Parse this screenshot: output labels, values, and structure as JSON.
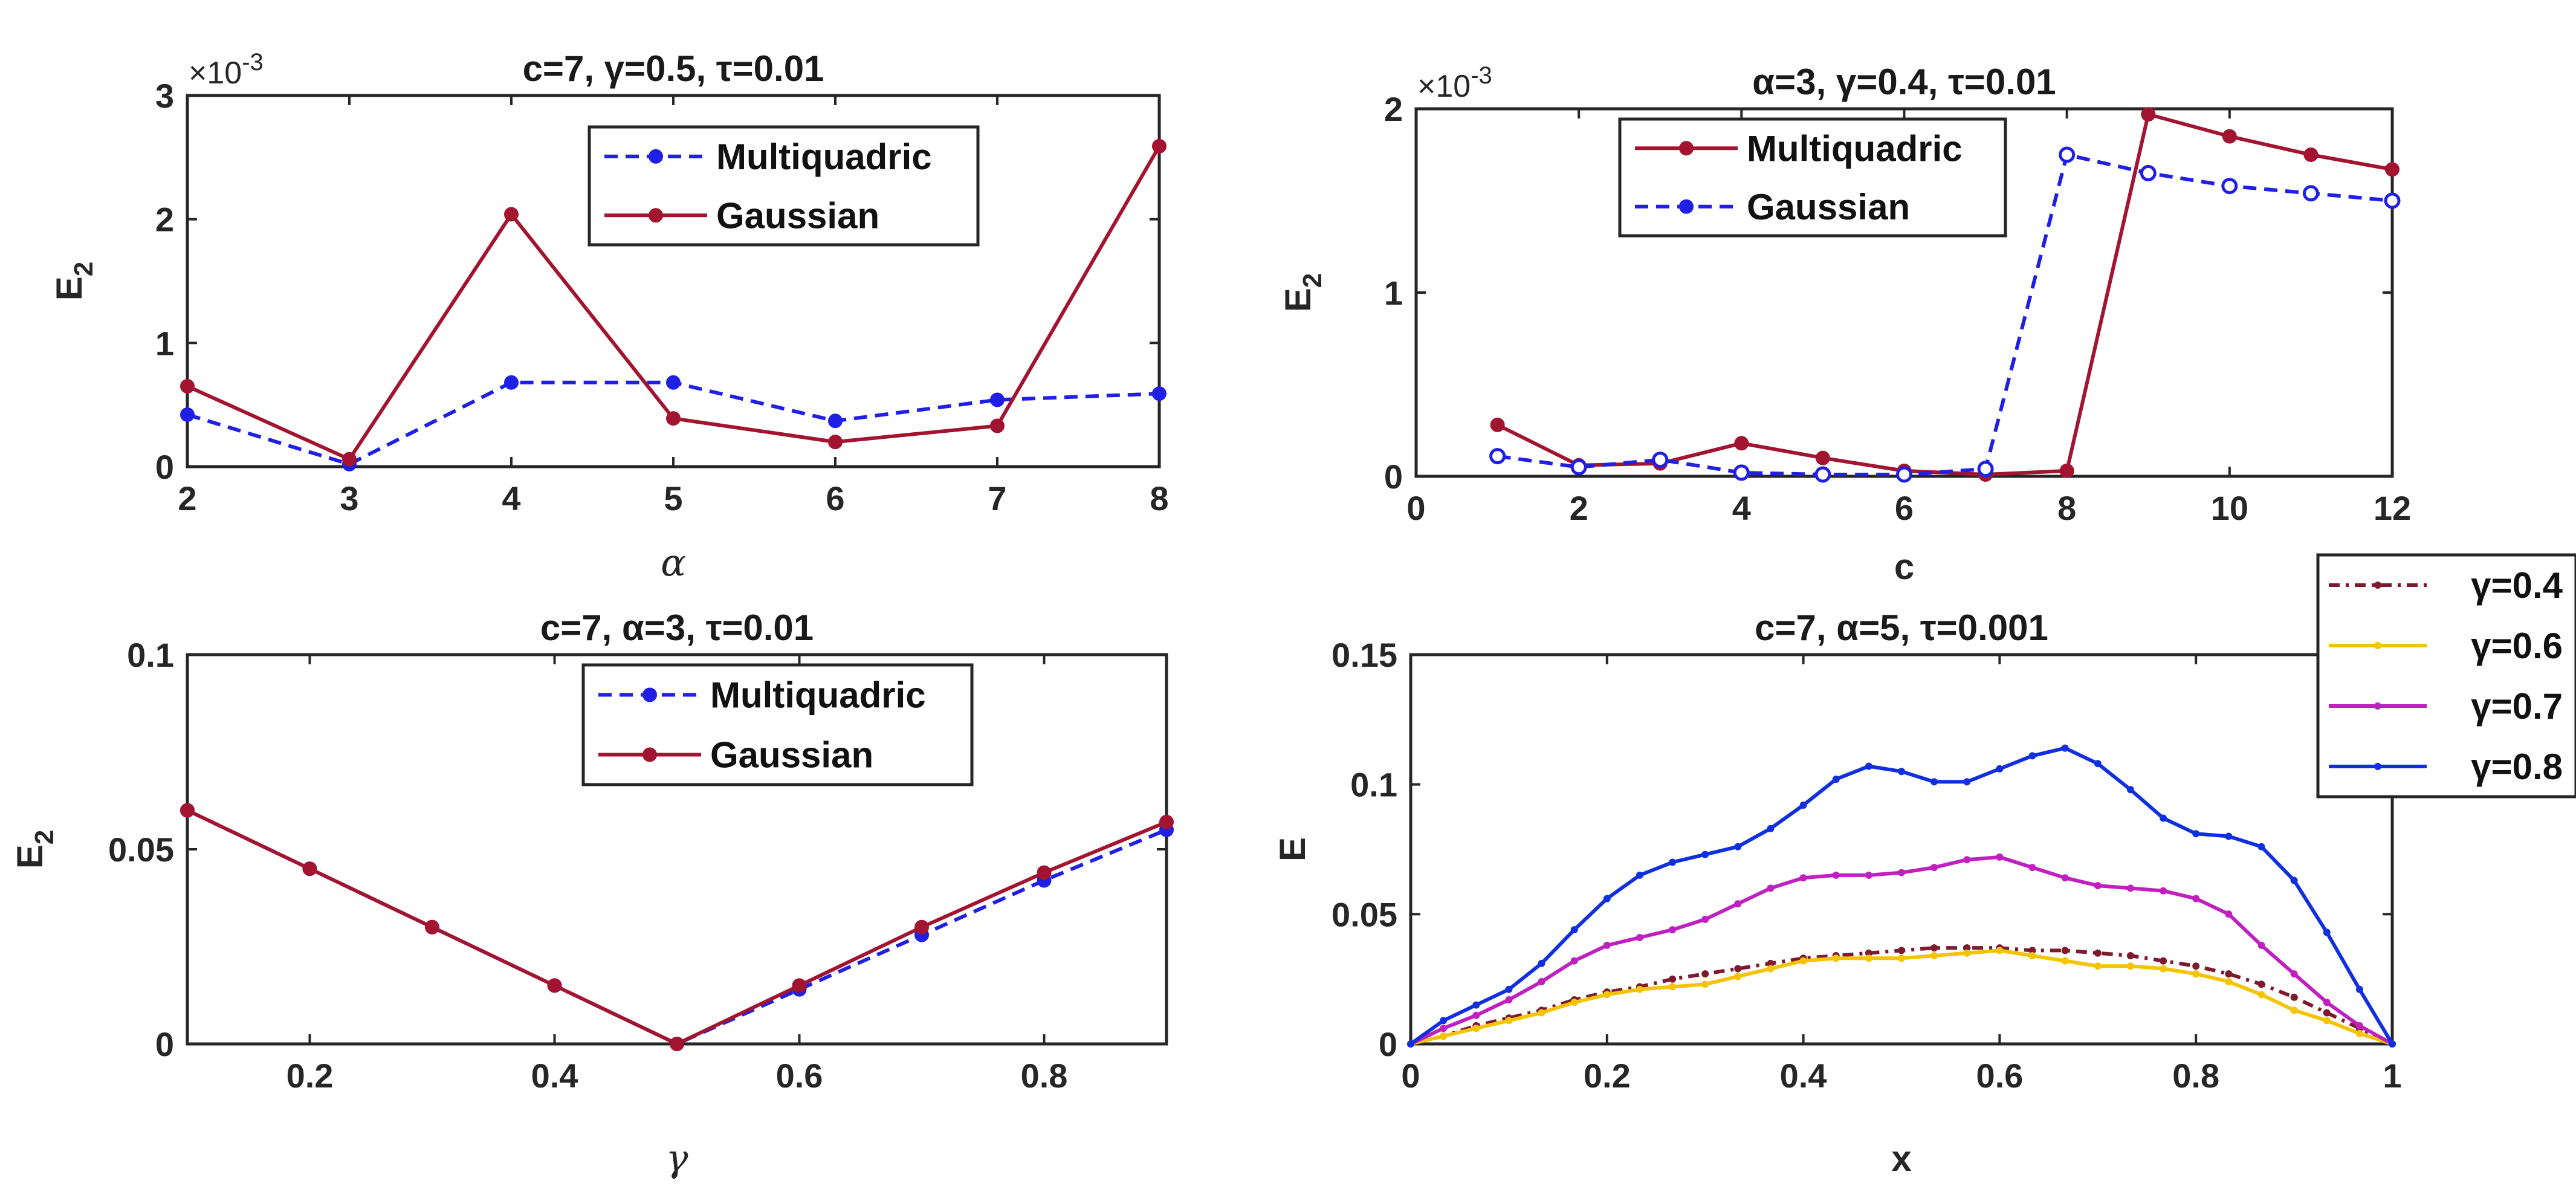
{
  "chart_data": [
    {
      "type": "line",
      "title": "c=7, γ=0.5, τ=0.01",
      "xlabel": "α",
      "ylabel": "E2",
      "y_exponent": "×10-3",
      "xlim": [
        2,
        8
      ],
      "ylim": [
        0,
        3
      ],
      "xticks": [
        "2",
        "3",
        "4",
        "5",
        "6",
        "7",
        "8"
      ],
      "yticks": [
        "0",
        "1",
        "2",
        "3"
      ],
      "legend_position": "top-right",
      "x": [
        2,
        3,
        4,
        5,
        6,
        7,
        8
      ],
      "series": [
        {
          "name": "Multiquadric",
          "values": [
            0.42,
            0.02,
            0.68,
            0.68,
            0.37,
            0.54,
            0.59
          ],
          "color": "#1f1fe6",
          "style": "dashed"
        },
        {
          "name": "Gaussian",
          "values": [
            0.65,
            0.06,
            2.04,
            0.39,
            0.2,
            0.33,
            2.59
          ],
          "color": "#a2142f",
          "style": "solid"
        }
      ]
    },
    {
      "type": "line",
      "title": "α=3, γ=0.4, τ=0.01",
      "xlabel": "c",
      "ylabel": "E2",
      "y_exponent": "×10-3",
      "xlim": [
        0,
        12
      ],
      "ylim": [
        0,
        2
      ],
      "xticks": [
        "0",
        "2",
        "4",
        "6",
        "8",
        "10",
        "12"
      ],
      "yticks": [
        "0",
        "1",
        "2"
      ],
      "legend_position": "top-left",
      "x": [
        1,
        2,
        3,
        4,
        5,
        6,
        7,
        8,
        9,
        10,
        11,
        12
      ],
      "series": [
        {
          "name": "Multiquadric",
          "values": [
            0.28,
            0.06,
            0.07,
            0.18,
            0.1,
            0.03,
            0.01,
            0.03,
            1.97,
            1.85,
            1.75,
            1.67
          ],
          "color": "#a2142f",
          "style": "solid"
        },
        {
          "name": "Gaussian",
          "values": [
            0.11,
            0.05,
            0.09,
            0.02,
            0.01,
            0.01,
            0.04,
            1.75,
            1.65,
            1.58,
            1.54,
            1.5
          ],
          "color": "#1f1fe6",
          "style": "dashed"
        }
      ]
    },
    {
      "type": "line",
      "title": "c=7, α=3, τ=0.01",
      "xlabel": "γ",
      "ylabel": "E2",
      "xlim": [
        0.1,
        0.9
      ],
      "ylim": [
        0,
        0.1
      ],
      "xticks": [
        "0.2",
        "0.4",
        "0.6",
        "0.8"
      ],
      "yticks": [
        "0",
        "0.05",
        "0.1"
      ],
      "legend_position": "top-right",
      "x": [
        0.1,
        0.2,
        0.3,
        0.4,
        0.5,
        0.6,
        0.7,
        0.8,
        0.9
      ],
      "series": [
        {
          "name": "Multiquadric",
          "values": [
            0.06,
            0.045,
            0.03,
            0.015,
            0.0,
            0.014,
            0.028,
            0.042,
            0.055
          ],
          "color": "#1f1fe6",
          "style": "dashed"
        },
        {
          "name": "Gaussian",
          "values": [
            0.06,
            0.045,
            0.03,
            0.015,
            0.0,
            0.015,
            0.03,
            0.044,
            0.057
          ],
          "color": "#a2142f",
          "style": "solid"
        }
      ]
    },
    {
      "type": "line",
      "title": "c=7, α=5, τ=0.001",
      "xlabel": "x",
      "ylabel": "E",
      "xlim": [
        0,
        1
      ],
      "ylim": [
        0,
        0.15
      ],
      "xticks": [
        "0",
        "0.2",
        "0.4",
        "0.6",
        "0.8",
        "1"
      ],
      "yticks": [
        "0",
        "0.05",
        "0.1",
        "0.15"
      ],
      "legend_position": "outside-top-right",
      "x": [
        0,
        0.0333,
        0.0667,
        0.1,
        0.1333,
        0.1667,
        0.2,
        0.2333,
        0.2667,
        0.3,
        0.3333,
        0.3667,
        0.4,
        0.4333,
        0.4667,
        0.5,
        0.5333,
        0.5667,
        0.6,
        0.6333,
        0.6667,
        0.7,
        0.7333,
        0.7667,
        0.8,
        0.8333,
        0.8667,
        0.9,
        0.9333,
        0.9667,
        1
      ],
      "series": [
        {
          "name": "γ=0.4",
          "color": "#7e1a2e",
          "style": "dashdot",
          "values": [
            0,
            0.003,
            0.007,
            0.01,
            0.013,
            0.017,
            0.02,
            0.022,
            0.025,
            0.027,
            0.029,
            0.031,
            0.033,
            0.034,
            0.035,
            0.036,
            0.037,
            0.037,
            0.037,
            0.036,
            0.036,
            0.035,
            0.034,
            0.032,
            0.03,
            0.027,
            0.023,
            0.018,
            0.012,
            0.006,
            0
          ]
        },
        {
          "name": "γ=0.6",
          "color": "#f5c400",
          "style": "solid",
          "values": [
            0,
            0.003,
            0.006,
            0.009,
            0.012,
            0.016,
            0.019,
            0.021,
            0.022,
            0.023,
            0.026,
            0.029,
            0.032,
            0.033,
            0.033,
            0.033,
            0.034,
            0.035,
            0.036,
            0.034,
            0.032,
            0.03,
            0.03,
            0.029,
            0.027,
            0.024,
            0.019,
            0.013,
            0.009,
            0.004,
            0
          ]
        },
        {
          "name": "γ=0.7",
          "color": "#c020c0",
          "style": "solid",
          "values": [
            0,
            0.006,
            0.011,
            0.017,
            0.024,
            0.032,
            0.038,
            0.041,
            0.044,
            0.048,
            0.054,
            0.06,
            0.064,
            0.065,
            0.065,
            0.066,
            0.068,
            0.071,
            0.072,
            0.068,
            0.064,
            0.061,
            0.06,
            0.059,
            0.056,
            0.05,
            0.038,
            0.027,
            0.016,
            0.007,
            0
          ]
        },
        {
          "name": "γ=0.8",
          "color": "#1030e0",
          "style": "solid",
          "values": [
            0,
            0.009,
            0.015,
            0.021,
            0.031,
            0.044,
            0.056,
            0.065,
            0.07,
            0.073,
            0.076,
            0.083,
            0.092,
            0.102,
            0.107,
            0.105,
            0.101,
            0.101,
            0.106,
            0.111,
            0.114,
            0.108,
            0.098,
            0.087,
            0.081,
            0.08,
            0.076,
            0.063,
            0.043,
            0.021,
            0
          ]
        }
      ]
    }
  ]
}
